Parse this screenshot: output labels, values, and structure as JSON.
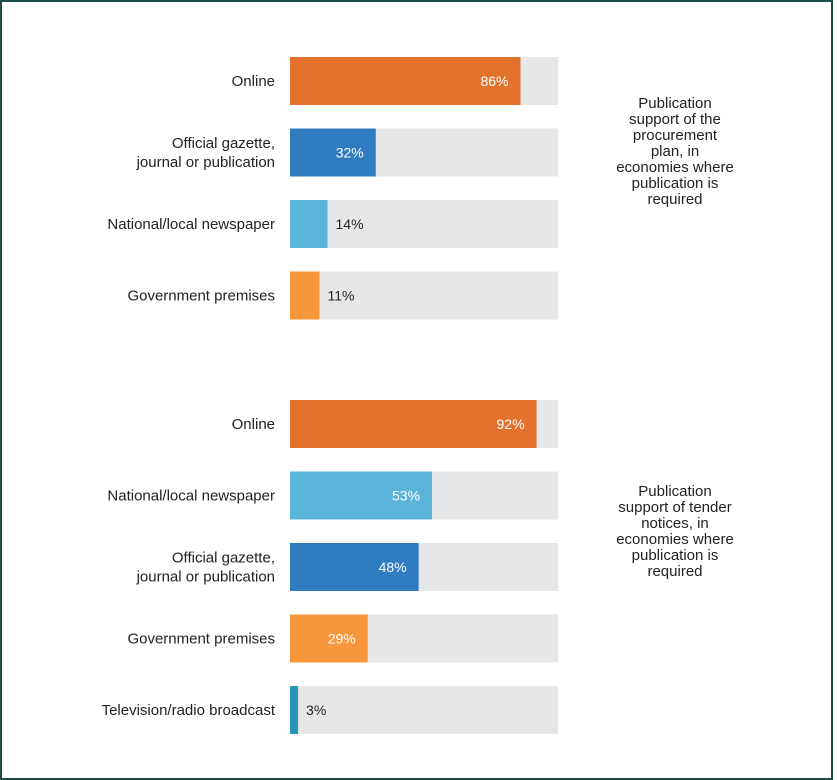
{
  "colors": {
    "track": "#e6e7e8",
    "online": "#e4722f",
    "gazette": "#2f7cc1",
    "newspaper": "#5bb4da",
    "premises": "#f7963a",
    "broadcast": "#2a93b8",
    "label_light": "#ffffff",
    "label_dark": "#222222"
  },
  "chart_data": [
    {
      "type": "bar",
      "orientation": "horizontal",
      "xlim": [
        0,
        100
      ],
      "unit": "%",
      "categories": [
        {
          "label": [
            "Online"
          ],
          "value": 86,
          "display": "86%",
          "color_key": "online"
        },
        {
          "label": [
            "Official gazette,",
            "journal or publication"
          ],
          "value": 32,
          "display": "32%",
          "color_key": "gazette"
        },
        {
          "label": [
            "National/local newspaper"
          ],
          "value": 14,
          "display": "14%",
          "color_key": "newspaper"
        },
        {
          "label": [
            "Government premises"
          ],
          "value": 11,
          "display": "11%",
          "color_key": "premises"
        }
      ],
      "caption": [
        "Publication",
        "support of the",
        "procurement",
        "plan, in",
        "economies where",
        "publication is",
        "required"
      ]
    },
    {
      "type": "bar",
      "orientation": "horizontal",
      "xlim": [
        0,
        100
      ],
      "unit": "%",
      "categories": [
        {
          "label": [
            "Online"
          ],
          "value": 92,
          "display": "92%",
          "color_key": "online"
        },
        {
          "label": [
            "National/local newspaper"
          ],
          "value": 53,
          "display": "53%",
          "color_key": "newspaper"
        },
        {
          "label": [
            "Official gazette,",
            "journal or publication"
          ],
          "value": 48,
          "display": "48%",
          "color_key": "gazette"
        },
        {
          "label": [
            "Government premises"
          ],
          "value": 29,
          "display": "29%",
          "color_key": "premises"
        },
        {
          "label": [
            "Television/radio broadcast"
          ],
          "value": 3,
          "display": "3%",
          "color_key": "broadcast"
        }
      ],
      "caption": [
        "Publication",
        "support of tender",
        "notices, in",
        "economies where",
        "publication is",
        "required"
      ]
    }
  ]
}
